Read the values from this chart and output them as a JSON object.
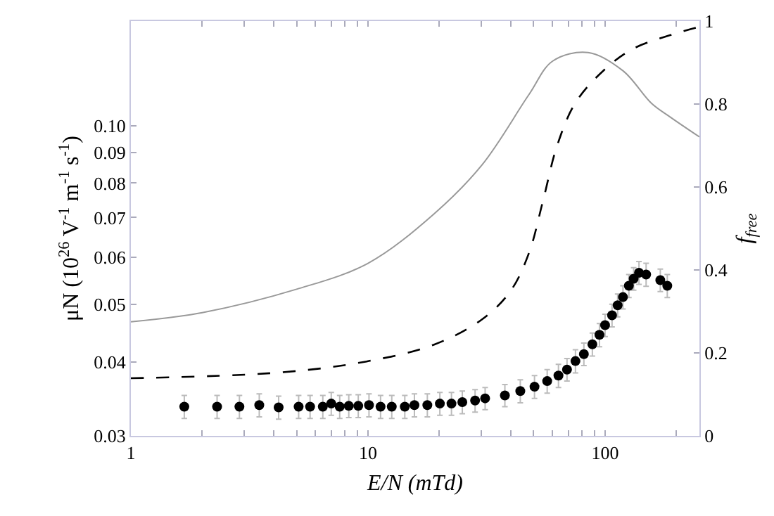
{
  "chart_data": {
    "type": "scatter",
    "xlabel": "E/N (mTd)",
    "ylabel": "μN (10$^{26}$ V$^{-1}$ m$^{-1}$ s$^{-1}$)",
    "y2label": "f$_{free}$",
    "log": "xy",
    "grid": false,
    "marker": "circle",
    "xlim": [
      1,
      250
    ],
    "xticks": [
      1,
      {
        "value": 2,
        "label": null
      },
      {
        "value": 3,
        "label": null
      },
      {
        "value": 4,
        "label": null
      },
      {
        "value": 5,
        "label": null
      },
      {
        "value": 6,
        "label": null
      },
      {
        "value": 7,
        "label": null
      },
      {
        "value": 8,
        "label": null
      },
      {
        "value": 9,
        "label": null
      },
      10,
      {
        "value": 20,
        "label": null
      },
      {
        "value": 30,
        "label": null
      },
      {
        "value": 40,
        "label": null
      },
      {
        "value": 50,
        "label": null
      },
      {
        "value": 60,
        "label": null
      },
      {
        "value": 70,
        "label": null
      },
      {
        "value": 80,
        "label": null
      },
      {
        "value": 90,
        "label": null
      },
      100,
      {
        "value": 200,
        "label": null
      }
    ],
    "ylim": [
      0.03,
      0.15
    ],
    "yticks": [
      {
        "value": 0.03,
        "label": "0.03"
      },
      {
        "value": 0.04,
        "label": "0.04"
      },
      {
        "value": 0.05,
        "label": "0.05"
      },
      {
        "value": 0.06,
        "label": "0.06"
      },
      {
        "value": 0.07,
        "label": "0.07"
      },
      {
        "value": 0.08,
        "label": "0.08"
      },
      {
        "value": 0.09,
        "label": "0.09"
      },
      {
        "value": 0.1,
        "label": "0.10"
      }
    ],
    "y2lim": [
      0,
      1
    ],
    "y2ticks": [
      0,
      0.2,
      0.4,
      0.6,
      0.8,
      1
    ],
    "series": [
      {
        "color": "#000000",
        "x": [
          1.68,
          2.31,
          2.87,
          3.48,
          4.2,
          5.1,
          5.7,
          6.45,
          7.0,
          7.6,
          8.3,
          9.1,
          10.1,
          11.3,
          12.6,
          14.3,
          15.7,
          17.8,
          20.1,
          22.5,
          25.0,
          28.3,
          31.2,
          37.8,
          43.9,
          50.4,
          57.0,
          63.6,
          69.1,
          75.0,
          81.4,
          88.4,
          94.7,
          100,
          107,
          113,
          119,
          126,
          132,
          139,
          149,
          171,
          183
        ],
        "values": [
          0.0336,
          0.0336,
          0.0336,
          0.0338,
          0.0335,
          0.0336,
          0.0336,
          0.0336,
          0.034,
          0.0336,
          0.0337,
          0.0337,
          0.0338,
          0.0336,
          0.0336,
          0.0336,
          0.0338,
          0.0338,
          0.034,
          0.034,
          0.0342,
          0.0344,
          0.0347,
          0.0351,
          0.0357,
          0.0363,
          0.0371,
          0.0379,
          0.0388,
          0.0401,
          0.0412,
          0.0428,
          0.0444,
          0.0461,
          0.0479,
          0.0498,
          0.0514,
          0.0537,
          0.0552,
          0.0565,
          0.0561,
          0.0549,
          0.0537
        ],
        "errors": [
          0.0015,
          0.0015,
          0.0015,
          0.0015,
          0.0015,
          0.0015,
          0.0015,
          0.0015,
          0.0015,
          0.0015,
          0.0015,
          0.0015,
          0.0015,
          0.0015,
          0.0015,
          0.0015,
          0.0015,
          0.0015,
          0.0015,
          0.0015,
          0.0015,
          0.0015,
          0.0015,
          0.0015,
          0.0016,
          0.0016,
          0.0017,
          0.0017,
          0.0017,
          0.0018,
          0.0018,
          0.0019,
          0.002,
          0.002,
          0.0021,
          0.0022,
          0.0023,
          0.0024,
          0.0024,
          0.0025,
          0.0025,
          0.0024,
          0.0024
        ]
      },
      {
        "type": "line",
        "color": "#999999",
        "line_style": "solid",
        "marker": "none",
        "x": [
          1,
          2,
          5,
          10,
          19,
          30.3,
          47.7,
          60.2,
          84.8,
          119,
          157,
          188,
          250
        ],
        "values": [
          0.0467,
          0.0484,
          0.053,
          0.0586,
          0.071,
          0.0859,
          0.1127,
          0.1285,
          0.1328,
          0.1237,
          0.109,
          0.1034,
          0.0957
        ]
      },
      {
        "type": "line",
        "axis": "y2",
        "color": "#000000",
        "line_style": "dashed",
        "marker": "none",
        "x": [
          1,
          4.3,
          10,
          19,
          30.3,
          39.9,
          47.7,
          54.7,
          62.8,
          75,
          98.6,
          130,
          188,
          250
        ],
        "values": [
          0.139,
          0.153,
          0.18,
          0.22,
          0.281,
          0.349,
          0.44,
          0.566,
          0.7,
          0.803,
          0.881,
          0.932,
          0.966,
          0.986
        ]
      }
    ]
  }
}
